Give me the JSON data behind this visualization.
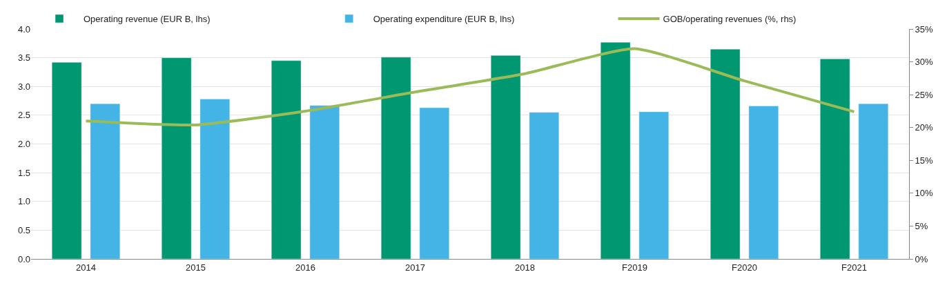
{
  "chart_data": {
    "type": "bar",
    "categories": [
      "2014",
      "2015",
      "2016",
      "2017",
      "2018",
      "F2019",
      "F2020",
      "F2021"
    ],
    "series": [
      {
        "name": "Operating revenue (EUR B, lhs)",
        "color": "#009771",
        "values": [
          3.42,
          3.5,
          3.45,
          3.51,
          3.54,
          3.77,
          3.65,
          3.48
        ]
      },
      {
        "name": "Operating expenditure (EUR B, lhs)",
        "color": "#43b4e5",
        "values": [
          2.7,
          2.78,
          2.67,
          2.63,
          2.55,
          2.56,
          2.66,
          2.7
        ]
      },
      {
        "name": "GOB/operating revenues (%, rhs)",
        "color": "#9bbb59",
        "type": "line",
        "axis": "y2",
        "values": [
          21,
          20.4,
          22.5,
          25.4,
          28.2,
          32,
          27.1,
          22.4
        ]
      }
    ],
    "ylim": [
      0,
      4
    ],
    "yticks": [
      {
        "value": 0,
        "label": "0.0"
      },
      0.5,
      {
        "value": 1,
        "label": "1.0"
      },
      1.5,
      {
        "value": 2,
        "label": "2.0"
      },
      2.5,
      {
        "value": 3,
        "label": "3.0"
      },
      3.5,
      {
        "value": 4,
        "label": "4.0"
      }
    ],
    "y2lim": [
      0,
      35
    ],
    "y2ticks": [
      {
        "value": 0,
        "label": "0%"
      },
      {
        "value": 5,
        "label": "5%"
      },
      {
        "value": 10,
        "label": "10%"
      },
      {
        "value": 15,
        "label": "15%"
      },
      {
        "value": 20,
        "label": "20%"
      },
      {
        "value": 25,
        "label": "25%"
      },
      {
        "value": 30,
        "label": "30%"
      },
      {
        "value": 35,
        "label": "35%"
      }
    ],
    "grid": "y",
    "legend": "top",
    "marker": "none",
    "line_style": "solid"
  }
}
